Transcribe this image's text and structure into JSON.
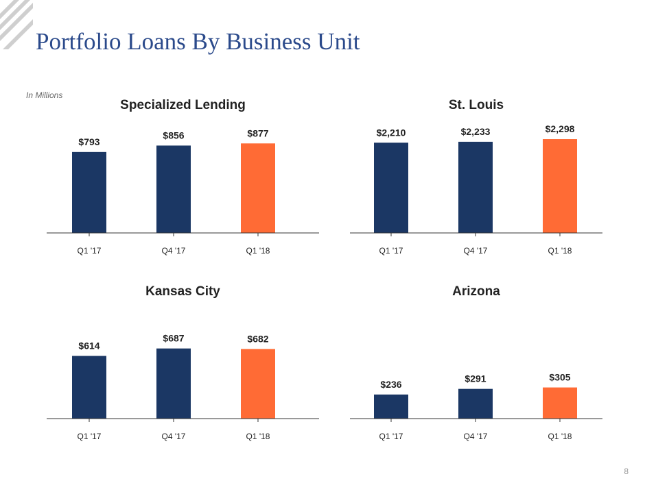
{
  "title": "Portfolio Loans By Business Unit",
  "note": "In Millions",
  "page_number": "8",
  "chart_data": [
    {
      "type": "bar",
      "title": "Specialized Lending",
      "categories": [
        "Q1 '17",
        "Q4 '17",
        "Q1 '18"
      ],
      "values": [
        793,
        856,
        877
      ],
      "value_labels": [
        "$793",
        "$856",
        "$877"
      ],
      "colors": [
        "#1b3764",
        "#1b3764",
        "#ff6b35"
      ],
      "ylim": [
        0,
        1000
      ]
    },
    {
      "type": "bar",
      "title": "St. Louis",
      "categories": [
        "Q1 '17",
        "Q4 '17",
        "Q1 '18"
      ],
      "values": [
        2210,
        2233,
        2298
      ],
      "value_labels": [
        "$2,210",
        "$2,233",
        "$2,298"
      ],
      "colors": [
        "#1b3764",
        "#1b3764",
        "#ff6b35"
      ],
      "ylim": [
        0,
        2500
      ]
    },
    {
      "type": "bar",
      "title": "Kansas City",
      "categories": [
        "Q1 '17",
        "Q4 '17",
        "Q1 '18"
      ],
      "values": [
        614,
        687,
        682
      ],
      "value_labels": [
        "$614",
        "$687",
        "$682"
      ],
      "colors": [
        "#1b3764",
        "#1b3764",
        "#ff6b35"
      ],
      "ylim": [
        0,
        1000
      ]
    },
    {
      "type": "bar",
      "title": "Arizona",
      "categories": [
        "Q1 '17",
        "Q4 '17",
        "Q1 '18"
      ],
      "values": [
        236,
        291,
        305
      ],
      "value_labels": [
        "$236",
        "$291",
        "$305"
      ],
      "colors": [
        "#1b3764",
        "#1b3764",
        "#ff6b35"
      ],
      "ylim": [
        0,
        1000
      ]
    }
  ]
}
